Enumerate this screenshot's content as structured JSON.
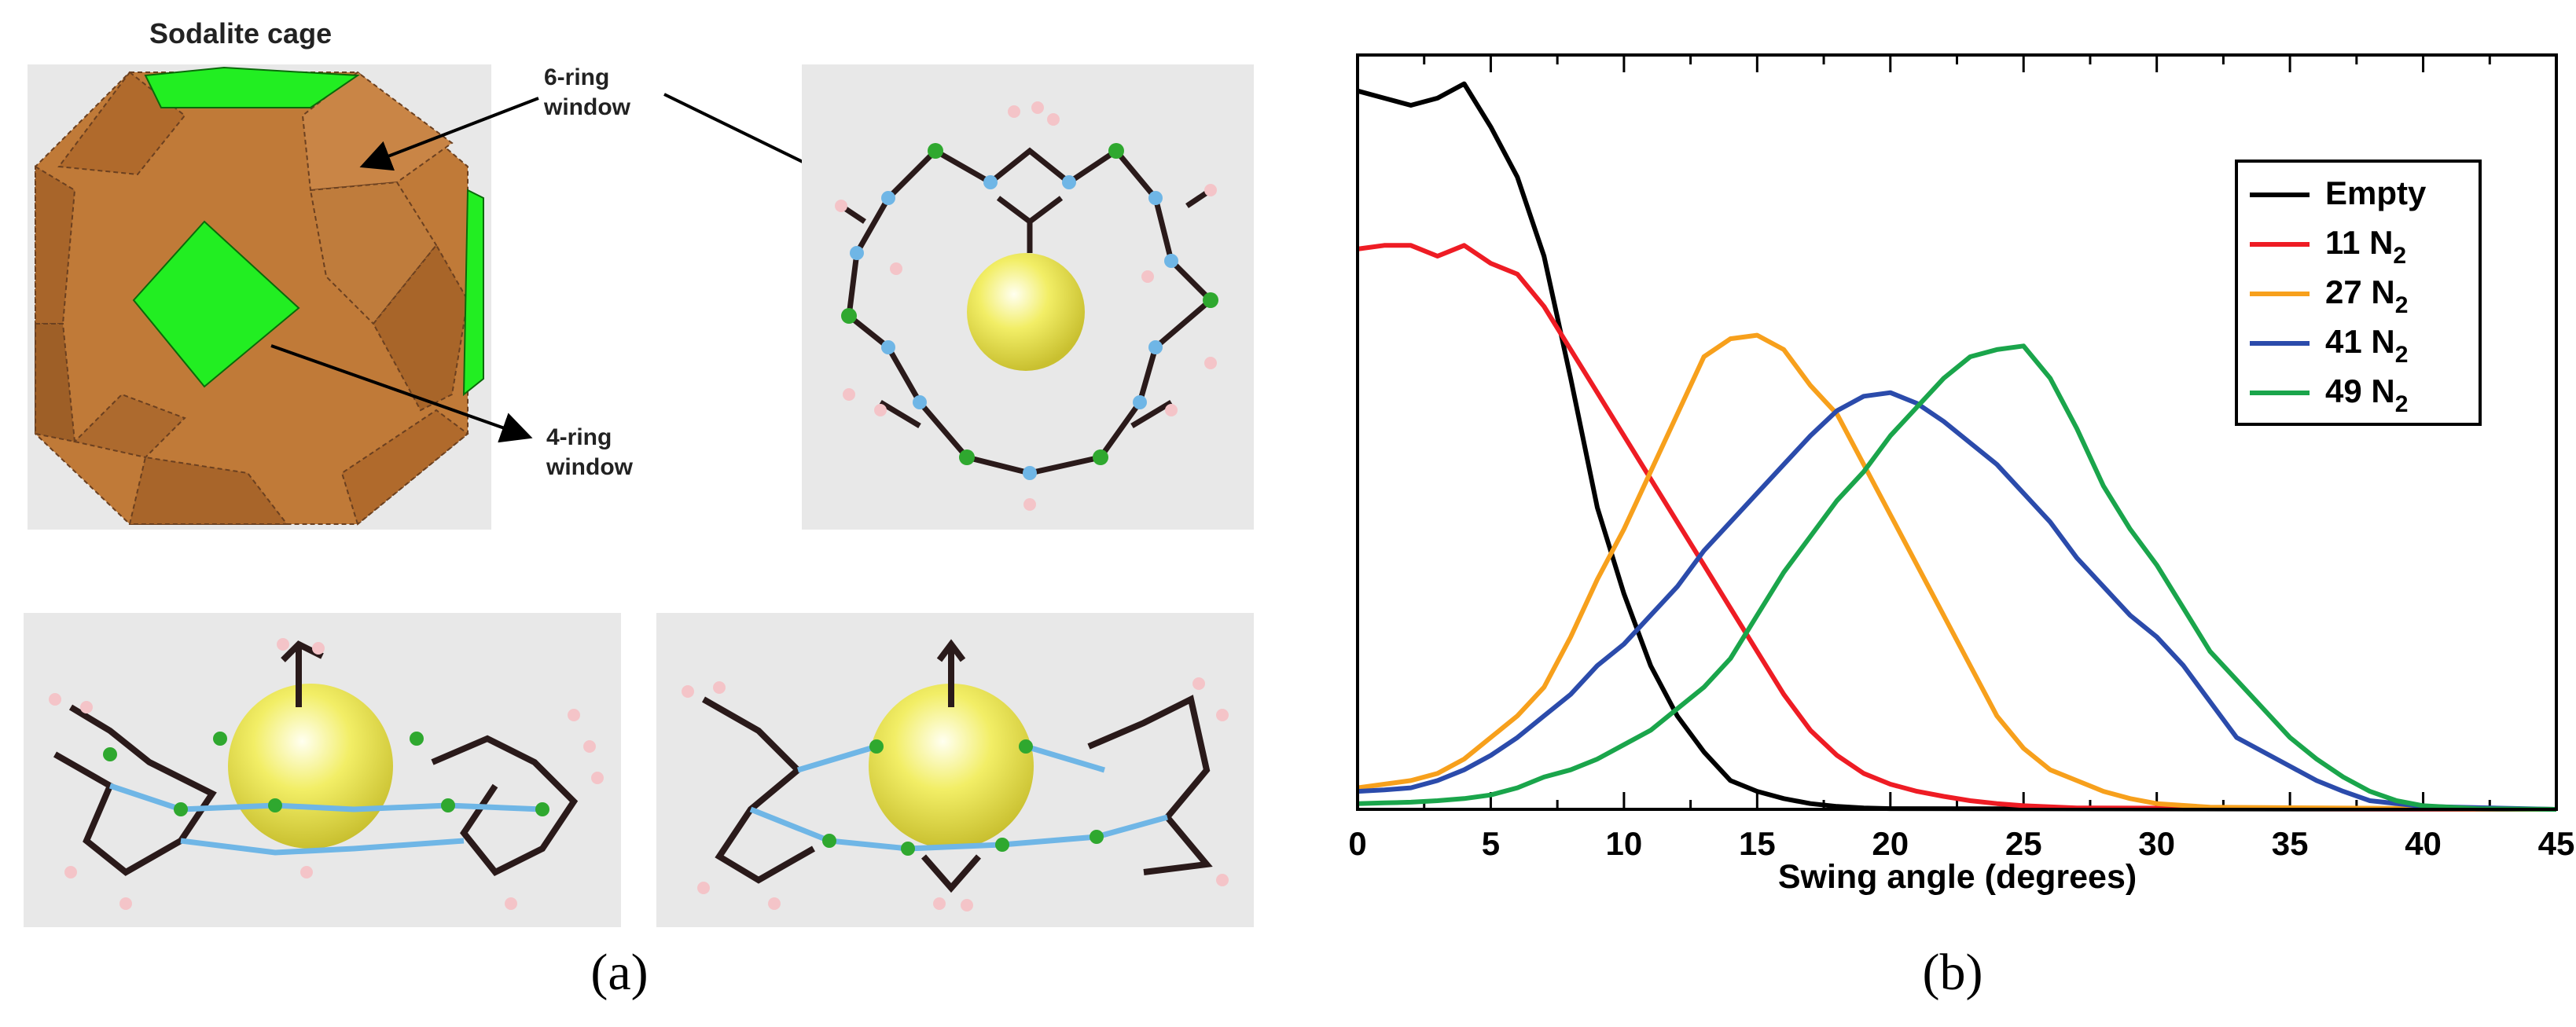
{
  "panel_a": {
    "label": "(a)",
    "title": "Sodalite cage",
    "six_ring_line1": "6-ring",
    "six_ring_line2": "window",
    "four_ring_line1": "4-ring",
    "four_ring_line2": "window"
  },
  "panel_b": {
    "label": "(b)"
  },
  "colors": {
    "face_brown": "#c07a38",
    "face_green": "#22ee22",
    "sphere": "#f2ee66",
    "carbon": "#2a1a1a",
    "nitrogen": "#6fb6e6",
    "zinc": "#2fa82f",
    "hydrogen": "#f4c4c8",
    "box_bg": "#e8e8e8"
  },
  "chart_data": {
    "type": "line",
    "xlabel": "Swing angle (degrees)",
    "ylabel": "",
    "xlim": [
      0,
      45
    ],
    "ylim": [
      0,
      1.05
    ],
    "xticks": [
      0,
      5,
      10,
      15,
      20,
      25,
      30,
      35,
      40,
      45
    ],
    "legend_position": "top-right",
    "grid": false,
    "series": [
      {
        "name": "Empty",
        "subscript": "",
        "color": "#000000",
        "x": [
          0,
          1,
          2,
          3,
          4,
          5,
          6,
          7,
          8,
          9,
          10,
          11,
          12,
          13,
          14,
          15,
          16,
          17,
          18,
          19,
          20,
          45
        ],
        "y": [
          1.0,
          0.99,
          0.98,
          0.99,
          1.01,
          0.95,
          0.88,
          0.77,
          0.6,
          0.42,
          0.3,
          0.2,
          0.13,
          0.08,
          0.04,
          0.025,
          0.015,
          0.008,
          0.004,
          0.002,
          0.001,
          0.0
        ]
      },
      {
        "name": "11 N",
        "subscript": "2",
        "color": "#ee1c24",
        "x": [
          0,
          1,
          2,
          3,
          4,
          5,
          6,
          7,
          8,
          9,
          10,
          11,
          12,
          13,
          14,
          15,
          16,
          17,
          18,
          19,
          20,
          21,
          22,
          23,
          24,
          25,
          27,
          45
        ],
        "y": [
          0.78,
          0.785,
          0.785,
          0.77,
          0.785,
          0.76,
          0.745,
          0.7,
          0.64,
          0.58,
          0.52,
          0.46,
          0.4,
          0.34,
          0.28,
          0.22,
          0.16,
          0.11,
          0.075,
          0.05,
          0.035,
          0.025,
          0.018,
          0.012,
          0.008,
          0.005,
          0.002,
          0.0
        ]
      },
      {
        "name": "27 N",
        "subscript": "2",
        "color": "#f7a01c",
        "x": [
          0,
          1,
          2,
          3,
          4,
          5,
          6,
          7,
          8,
          9,
          10,
          11,
          12,
          13,
          14,
          15,
          16,
          17,
          18,
          19,
          20,
          21,
          22,
          23,
          24,
          25,
          26,
          27,
          28,
          29,
          30,
          32,
          45
        ],
        "y": [
          0.03,
          0.035,
          0.04,
          0.05,
          0.07,
          0.1,
          0.13,
          0.17,
          0.24,
          0.32,
          0.39,
          0.47,
          0.55,
          0.63,
          0.655,
          0.66,
          0.64,
          0.59,
          0.55,
          0.48,
          0.41,
          0.34,
          0.27,
          0.2,
          0.13,
          0.085,
          0.055,
          0.04,
          0.025,
          0.015,
          0.008,
          0.003,
          0.0
        ]
      },
      {
        "name": "41 N",
        "subscript": "2",
        "color": "#2b4bab",
        "x": [
          0,
          1,
          2,
          3,
          4,
          5,
          6,
          7,
          8,
          9,
          10,
          11,
          12,
          13,
          14,
          15,
          16,
          17,
          18,
          19,
          20,
          21,
          22,
          23,
          24,
          25,
          26,
          27,
          28,
          29,
          30,
          31,
          32,
          33,
          34,
          35,
          36,
          37,
          38,
          40,
          45
        ],
        "y": [
          0.025,
          0.027,
          0.03,
          0.04,
          0.055,
          0.075,
          0.1,
          0.13,
          0.16,
          0.2,
          0.23,
          0.27,
          0.31,
          0.36,
          0.4,
          0.44,
          0.48,
          0.52,
          0.555,
          0.575,
          0.58,
          0.565,
          0.54,
          0.51,
          0.48,
          0.44,
          0.4,
          0.35,
          0.31,
          0.27,
          0.24,
          0.2,
          0.15,
          0.1,
          0.08,
          0.06,
          0.04,
          0.025,
          0.012,
          0.004,
          0.0
        ]
      },
      {
        "name": "49 N",
        "subscript": "2",
        "color": "#1aa54b",
        "x": [
          0,
          1,
          2,
          3,
          4,
          5,
          6,
          7,
          8,
          9,
          10,
          11,
          12,
          13,
          14,
          15,
          16,
          17,
          18,
          19,
          20,
          21,
          22,
          23,
          24,
          25,
          26,
          27,
          28,
          29,
          30,
          31,
          32,
          33,
          34,
          35,
          36,
          37,
          38,
          39,
          40,
          42,
          45
        ],
        "y": [
          0.008,
          0.009,
          0.01,
          0.012,
          0.015,
          0.02,
          0.03,
          0.045,
          0.055,
          0.07,
          0.09,
          0.11,
          0.14,
          0.17,
          0.21,
          0.27,
          0.33,
          0.38,
          0.43,
          0.47,
          0.52,
          0.56,
          0.6,
          0.63,
          0.64,
          0.645,
          0.6,
          0.53,
          0.45,
          0.39,
          0.34,
          0.28,
          0.22,
          0.18,
          0.14,
          0.1,
          0.07,
          0.045,
          0.025,
          0.012,
          0.005,
          0.001,
          0.0
        ]
      }
    ]
  }
}
